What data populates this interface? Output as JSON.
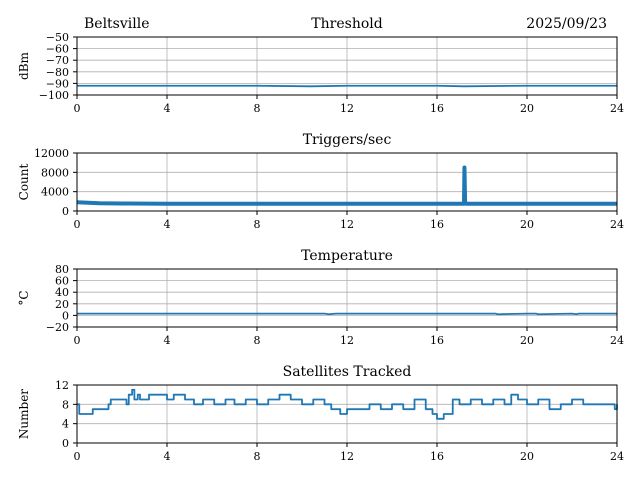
{
  "header": {
    "station": "Beltsville",
    "date": "2025/09/23"
  },
  "colors": {
    "series": "#1f77b4",
    "grid": "#b0b0b0",
    "axis": "#000000"
  },
  "chart_data": [
    {
      "type": "line",
      "title": "Threshold",
      "ylabel": "dBm",
      "xlim": [
        0,
        24
      ],
      "ylim": [
        -100,
        -50
      ],
      "xticks": [
        0,
        4,
        8,
        12,
        16,
        20,
        24
      ],
      "xtick_labels": [
        "0",
        "4",
        "8",
        "12",
        "16",
        "20",
        "24"
      ],
      "yticks": [
        -100,
        -90,
        -80,
        -70,
        -60,
        -50
      ],
      "ytick_labels": [
        "−100",
        "−90",
        "−80",
        "−70",
        "−60",
        "−50"
      ],
      "grid": true,
      "series": [
        {
          "x": [
            0,
            4,
            8,
            10.4,
            12,
            16,
            17.2,
            20,
            24
          ],
          "y": [
            -92,
            -92,
            -92,
            -92.5,
            -92,
            -92,
            -92.5,
            -92,
            -92
          ]
        }
      ]
    },
    {
      "type": "line",
      "title": "Triggers/sec",
      "ylabel": "Count",
      "xlim": [
        0,
        24
      ],
      "ylim": [
        0,
        12000
      ],
      "xticks": [
        0,
        4,
        8,
        12,
        16,
        20,
        24
      ],
      "xtick_labels": [
        "0",
        "4",
        "8",
        "12",
        "16",
        "20",
        "24"
      ],
      "yticks": [
        0,
        4000,
        8000,
        12000
      ],
      "ytick_labels": [
        "0",
        "4000",
        "8000",
        "12000"
      ],
      "grid": true,
      "series": [
        {
          "x": [
            0,
            0.5,
            1,
            2,
            4,
            6,
            8,
            10,
            12,
            14,
            16,
            17.2,
            17.22,
            17.25,
            17.3,
            18,
            20,
            22,
            24
          ],
          "y": [
            1800,
            1700,
            1600,
            1550,
            1500,
            1500,
            1500,
            1500,
            1500,
            1500,
            1500,
            1500,
            9000,
            1600,
            1500,
            1500,
            1500,
            1500,
            1500
          ]
        }
      ]
    },
    {
      "type": "line",
      "title": "Temperature",
      "ylabel": "°C",
      "xlim": [
        0,
        24
      ],
      "ylim": [
        -20,
        80
      ],
      "xticks": [
        0,
        4,
        8,
        12,
        16,
        20,
        24
      ],
      "xtick_labels": [
        "0",
        "4",
        "8",
        "12",
        "16",
        "20",
        "24"
      ],
      "yticks": [
        -20,
        0,
        20,
        40,
        60,
        80
      ],
      "ytick_labels": [
        "−20",
        "0",
        "20",
        "40",
        "60",
        "80"
      ],
      "grid": true,
      "series": [
        {
          "x": [
            0,
            4,
            8,
            11,
            11.2,
            11.5,
            12,
            16,
            18.6,
            18.7,
            20,
            20.4,
            20.5,
            22,
            22.2,
            22.3,
            24
          ],
          "y": [
            3,
            3,
            3,
            3,
            2,
            3,
            3,
            3,
            3,
            2,
            3,
            3,
            2,
            3,
            2,
            3,
            3
          ]
        }
      ]
    },
    {
      "type": "line",
      "title": "Satellites Tracked",
      "ylabel": "Number",
      "xlim": [
        0,
        24
      ],
      "ylim": [
        0,
        12
      ],
      "xticks": [
        0,
        4,
        8,
        12,
        16,
        20,
        24
      ],
      "xtick_labels": [
        "0",
        "4",
        "8",
        "12",
        "16",
        "20",
        "24"
      ],
      "yticks": [
        0,
        4,
        8,
        12
      ],
      "ytick_labels": [
        "0",
        "4",
        "8",
        "12"
      ],
      "grid": true,
      "step": true,
      "series": [
        {
          "x": [
            0,
            0.1,
            0.6,
            0.7,
            1.4,
            1.5,
            2.2,
            2.3,
            2.45,
            2.55,
            2.7,
            2.8,
            3.2,
            4.0,
            4.3,
            4.8,
            5.2,
            5.6,
            6.1,
            6.6,
            7.0,
            7.5,
            8.0,
            8.5,
            9.0,
            9.5,
            10.0,
            10.5,
            11.0,
            11.3,
            11.7,
            12.0,
            12.5,
            13.0,
            13.5,
            14.0,
            14.5,
            15.0,
            15.5,
            15.8,
            16.0,
            16.3,
            16.7,
            17.0,
            17.5,
            18.0,
            18.5,
            19.0,
            19.3,
            19.6,
            20.0,
            20.5,
            21.0,
            21.5,
            22.0,
            22.5,
            23.0,
            23.5,
            23.9,
            24.0
          ],
          "y": [
            8,
            6,
            6,
            7,
            8,
            9,
            8,
            10,
            11,
            9,
            10,
            9,
            10,
            9,
            10,
            9,
            8,
            9,
            8,
            9,
            8,
            9,
            8,
            9,
            10,
            9,
            8,
            9,
            8,
            7,
            6,
            7,
            7,
            8,
            7,
            8,
            7,
            9,
            7,
            6,
            5,
            6,
            9,
            8,
            9,
            8,
            9,
            8,
            10,
            9,
            8,
            9,
            7,
            8,
            9,
            8,
            8,
            8,
            7,
            8
          ]
        }
      ]
    }
  ]
}
